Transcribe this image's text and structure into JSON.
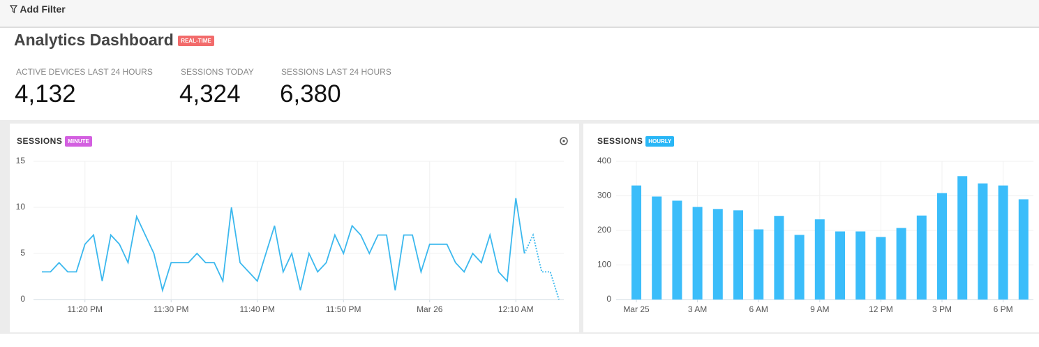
{
  "filter_bar": {
    "button": "Add Filter"
  },
  "header": {
    "title": "Analytics Dashboard",
    "badge": "REAL-TIME"
  },
  "stats": [
    {
      "label": "ACTIVE DEVICES LAST 24 HOURS",
      "value": "4,132"
    },
    {
      "label": "SESSIONS TODAY",
      "value": "4,324"
    },
    {
      "label": "SESSIONS LAST 24 HOURS",
      "value": "6,380"
    }
  ],
  "chart_data": [
    {
      "type": "line",
      "title": "SESSIONS",
      "badge": "MINUTE",
      "badge_color": "#d35fe0",
      "categories": [
        null,
        null,
        null,
        null,
        null,
        "11:20 PM",
        null,
        null,
        null,
        null,
        null,
        null,
        null,
        null,
        null,
        "11:30 PM",
        null,
        null,
        null,
        null,
        null,
        null,
        null,
        null,
        null,
        "11:40 PM",
        null,
        null,
        null,
        null,
        null,
        null,
        null,
        null,
        null,
        "11:50 PM",
        null,
        null,
        null,
        null,
        null,
        null,
        null,
        null,
        null,
        "Mar 26",
        null,
        null,
        null,
        null,
        null,
        null,
        null,
        null,
        null,
        "12:10 AM",
        null,
        null,
        null,
        null,
        null
      ],
      "series": [
        {
          "color": "#3bb8ee",
          "style": "solid",
          "values": [
            3,
            3,
            4,
            3,
            3,
            6,
            7,
            2,
            7,
            6,
            4,
            9,
            7,
            5,
            1,
            4,
            4,
            4,
            5,
            4,
            4,
            2,
            10,
            4,
            3,
            2,
            5,
            8,
            3,
            5,
            1,
            5,
            3,
            4,
            7,
            5,
            8,
            7,
            5,
            7,
            7,
            1,
            7,
            7,
            3,
            6,
            6,
            6,
            4,
            3,
            5,
            4,
            7,
            3,
            2,
            11,
            5,
            null,
            null,
            null,
            null
          ]
        },
        {
          "color": "#3bb8ee",
          "style": "dotted",
          "values": [
            null,
            null,
            null,
            null,
            null,
            null,
            null,
            null,
            null,
            null,
            null,
            null,
            null,
            null,
            null,
            null,
            null,
            null,
            null,
            null,
            null,
            null,
            null,
            null,
            null,
            null,
            null,
            null,
            null,
            null,
            null,
            null,
            null,
            null,
            null,
            null,
            null,
            null,
            null,
            null,
            null,
            null,
            null,
            null,
            null,
            null,
            null,
            null,
            null,
            null,
            null,
            null,
            null,
            null,
            null,
            null,
            5,
            7,
            3,
            3,
            0
          ]
        }
      ],
      "ylim": [
        0,
        15
      ],
      "yticks": [
        0,
        5,
        10,
        15
      ],
      "grid": true
    },
    {
      "type": "bar",
      "title": "SESSIONS",
      "badge": "HOURLY",
      "badge_color": "#29b6f6",
      "color": "#3bbdfa",
      "categories": [
        "Mar 25",
        null,
        null,
        "3 AM",
        null,
        null,
        "6 AM",
        null,
        null,
        "9 AM",
        null,
        null,
        "12 PM",
        null,
        null,
        "3 PM",
        null,
        null,
        "6 PM",
        null
      ],
      "values": [
        330,
        298,
        286,
        268,
        262,
        258,
        203,
        242,
        187,
        232,
        197,
        197,
        181,
        207,
        243,
        308,
        357,
        336,
        330,
        290
      ],
      "ylim": [
        0,
        400
      ],
      "yticks": [
        0,
        100,
        200,
        300,
        400
      ],
      "grid": true
    }
  ]
}
